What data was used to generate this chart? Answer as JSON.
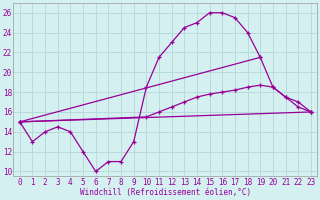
{
  "xlabel": "Windchill (Refroidissement éolien,°C)",
  "background_color": "#d4f0f0",
  "grid_color": "#b8dada",
  "line_color": "#990099",
  "xlim": [
    -0.5,
    23.5
  ],
  "ylim": [
    9.5,
    27
  ],
  "yticks": [
    10,
    12,
    14,
    16,
    18,
    20,
    22,
    24,
    26
  ],
  "xticks": [
    0,
    1,
    2,
    3,
    4,
    5,
    6,
    7,
    8,
    9,
    10,
    11,
    12,
    13,
    14,
    15,
    16,
    17,
    18,
    19,
    20,
    21,
    22,
    23
  ],
  "series1_x": [
    0,
    1,
    2,
    3,
    4,
    5,
    6,
    7,
    8,
    9,
    10,
    11,
    12,
    13,
    14,
    15,
    16,
    17,
    18,
    19
  ],
  "series1_y": [
    15.0,
    13.0,
    14.0,
    14.5,
    14.0,
    12.0,
    10.0,
    11.0,
    11.0,
    13.0,
    18.5,
    21.5,
    23.0,
    24.5,
    25.0,
    26.0,
    26.0,
    25.5,
    24.0,
    21.5
  ],
  "series2_x": [
    0,
    19,
    20,
    21,
    22,
    23
  ],
  "series2_y": [
    15.0,
    21.5,
    18.5,
    17.5,
    16.5,
    16.0
  ],
  "series3_x": [
    0,
    10,
    11,
    12,
    13,
    14,
    15,
    16,
    17,
    18,
    19,
    20,
    21,
    22,
    23
  ],
  "series3_y": [
    15.0,
    15.5,
    16.0,
    16.5,
    17.0,
    17.5,
    17.8,
    18.0,
    18.2,
    18.5,
    18.7,
    18.5,
    17.5,
    17.0,
    16.0
  ],
  "series4_x": [
    0,
    23
  ],
  "series4_y": [
    15.0,
    16.0
  ]
}
